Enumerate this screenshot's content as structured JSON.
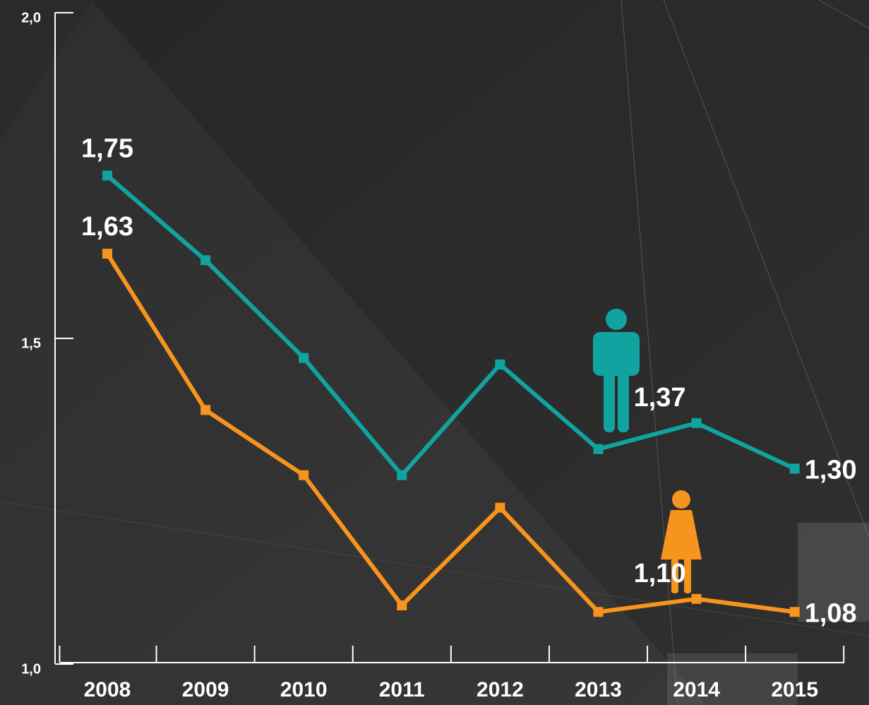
{
  "chart_data": {
    "type": "line",
    "categories": [
      "2008",
      "2009",
      "2010",
      "2011",
      "2012",
      "2013",
      "2014",
      "2015"
    ],
    "series": [
      {
        "color": "#11a39f",
        "values": [
          1.75,
          1.62,
          1.47,
          1.29,
          1.46,
          1.33,
          1.37,
          1.3
        ],
        "value_labels": [
          "1,75",
          null,
          null,
          null,
          null,
          null,
          "1,37",
          "1,30"
        ]
      },
      {
        "color": "#f7941d",
        "values": [
          1.63,
          1.39,
          1.29,
          1.09,
          1.24,
          1.08,
          1.1,
          1.08
        ],
        "value_labels": [
          "1,63",
          null,
          null,
          null,
          null,
          null,
          "1,10",
          "1,08"
        ]
      }
    ],
    "ylim": [
      1.0,
      2.0
    ],
    "yticks": [
      {
        "value": 1.0,
        "label": "1,0"
      },
      {
        "value": 1.5,
        "label": "1,5"
      },
      {
        "value": 2.0,
        "label": "2,0"
      }
    ]
  }
}
